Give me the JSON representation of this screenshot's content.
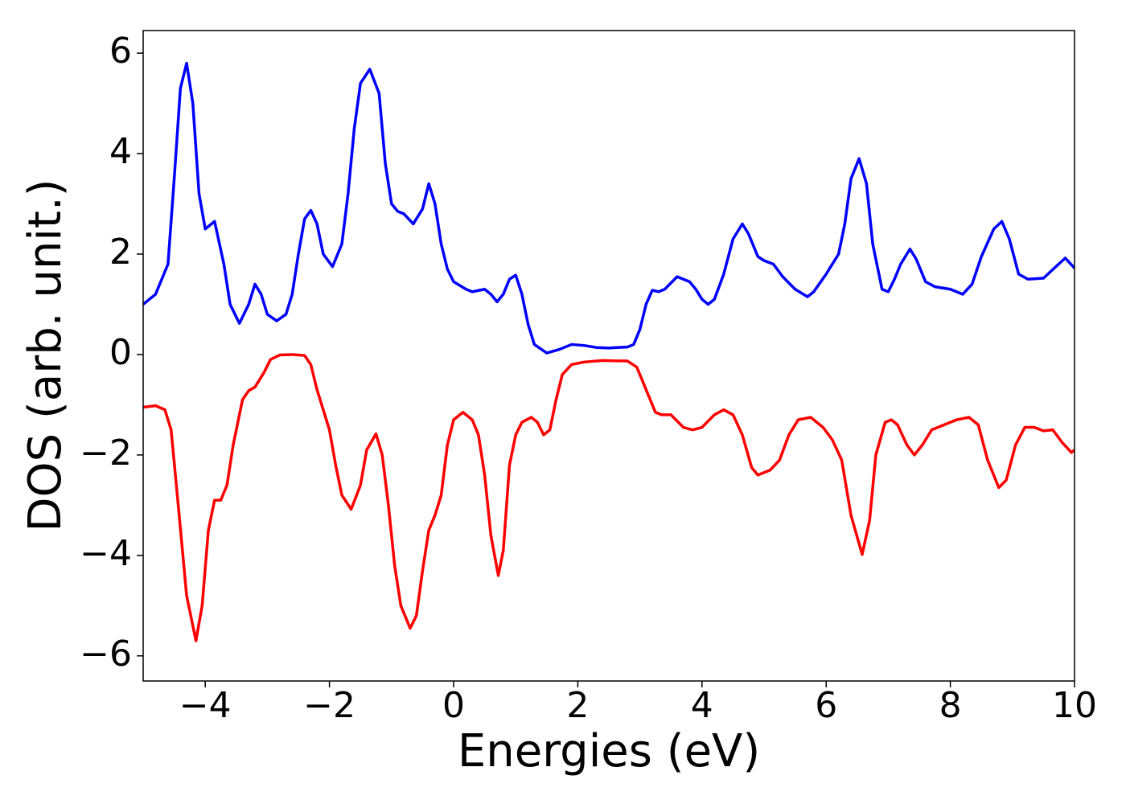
{
  "chart_data": {
    "type": "line",
    "xlabel": "Energies (eV)",
    "ylabel": "DOS (arb. unit.)",
    "xlim": [
      -5,
      10
    ],
    "ylim": [
      -6.5,
      6.45
    ],
    "xticks": [
      {
        "value": -4,
        "label": "−4"
      },
      {
        "value": -2,
        "label": "−2"
      },
      0,
      2,
      4,
      6,
      8,
      10
    ],
    "yticks": [
      {
        "value": -6,
        "label": "−6"
      },
      {
        "value": -4,
        "label": "−4"
      },
      {
        "value": -2,
        "label": "−2"
      },
      0,
      2,
      4,
      6
    ],
    "series": [
      {
        "color": "#0000ff",
        "x": [
          -5,
          -4.8,
          -4.6,
          -4.5,
          -4.4,
          -4.3,
          -4.2,
          -4.1,
          -4.0,
          -3.85,
          -3.7,
          -3.6,
          -3.45,
          -3.3,
          -3.2,
          -3.1,
          -3.0,
          -2.85,
          -2.7,
          -2.6,
          -2.5,
          -2.4,
          -2.3,
          -2.2,
          -2.1,
          -1.95,
          -1.8,
          -1.7,
          -1.6,
          -1.5,
          -1.35,
          -1.2,
          -1.1,
          -1.0,
          -0.9,
          -0.8,
          -0.65,
          -0.5,
          -0.4,
          -0.3,
          -0.2,
          -0.1,
          0,
          0.2,
          0.3,
          0.5,
          0.6,
          0.7,
          0.8,
          0.9,
          1.0,
          1.1,
          1.2,
          1.3,
          1.5,
          1.7,
          1.9,
          2.1,
          2.3,
          2.5,
          2.8,
          2.9,
          3.0,
          3.1,
          3.2,
          3.3,
          3.4,
          3.6,
          3.8,
          3.9,
          4.0,
          4.1,
          4.2,
          4.35,
          4.5,
          4.65,
          4.75,
          4.9,
          5.0,
          5.15,
          5.3,
          5.5,
          5.7,
          5.8,
          6.0,
          6.2,
          6.3,
          6.4,
          6.53,
          6.65,
          6.75,
          6.9,
          7.0,
          7.1,
          7.2,
          7.35,
          7.45,
          7.6,
          7.75,
          8.0,
          8.2,
          8.35,
          8.5,
          8.7,
          8.83,
          8.95,
          9.1,
          9.25,
          9.5,
          9.7,
          9.85,
          10.0
        ],
        "values": [
          1.0,
          1.2,
          1.8,
          3.5,
          5.3,
          5.8,
          5.0,
          3.2,
          2.5,
          2.65,
          1.8,
          1.0,
          0.62,
          1.0,
          1.4,
          1.2,
          0.8,
          0.67,
          0.8,
          1.2,
          2.0,
          2.7,
          2.87,
          2.6,
          2.0,
          1.75,
          2.2,
          3.2,
          4.5,
          5.4,
          5.68,
          5.2,
          3.8,
          3.0,
          2.85,
          2.8,
          2.6,
          2.9,
          3.4,
          3.0,
          2.2,
          1.7,
          1.45,
          1.3,
          1.25,
          1.3,
          1.2,
          1.05,
          1.2,
          1.5,
          1.58,
          1.2,
          0.6,
          0.2,
          0.03,
          0.1,
          0.2,
          0.18,
          0.14,
          0.13,
          0.15,
          0.2,
          0.5,
          1.0,
          1.28,
          1.25,
          1.3,
          1.55,
          1.45,
          1.3,
          1.1,
          1.0,
          1.1,
          1.6,
          2.3,
          2.6,
          2.4,
          1.95,
          1.87,
          1.8,
          1.55,
          1.3,
          1.15,
          1.25,
          1.6,
          2.0,
          2.6,
          3.5,
          3.9,
          3.4,
          2.2,
          1.3,
          1.25,
          1.5,
          1.8,
          2.1,
          1.9,
          1.45,
          1.35,
          1.3,
          1.2,
          1.4,
          1.95,
          2.5,
          2.65,
          2.3,
          1.6,
          1.5,
          1.52,
          1.75,
          1.92,
          1.72
        ]
      },
      {
        "color": "#ff0000",
        "x": [
          -5,
          -4.8,
          -4.65,
          -4.55,
          -4.45,
          -4.3,
          -4.15,
          -4.05,
          -3.95,
          -3.85,
          -3.75,
          -3.65,
          -3.55,
          -3.4,
          -3.3,
          -3.2,
          -3.05,
          -2.95,
          -2.8,
          -2.6,
          -2.4,
          -2.3,
          -2.2,
          -2.1,
          -2.0,
          -1.9,
          -1.8,
          -1.65,
          -1.5,
          -1.4,
          -1.25,
          -1.15,
          -1.05,
          -0.95,
          -0.85,
          -0.7,
          -0.6,
          -0.5,
          -0.4,
          -0.3,
          -0.2,
          -0.1,
          0.0,
          0.15,
          0.3,
          0.4,
          0.5,
          0.6,
          0.72,
          0.8,
          0.9,
          1.0,
          1.1,
          1.25,
          1.35,
          1.45,
          1.55,
          1.65,
          1.75,
          1.9,
          2.1,
          2.4,
          2.8,
          2.95,
          3.1,
          3.25,
          3.35,
          3.5,
          3.7,
          3.85,
          4.0,
          4.2,
          4.35,
          4.5,
          4.65,
          4.8,
          4.9,
          5.1,
          5.25,
          5.4,
          5.55,
          5.75,
          5.95,
          6.1,
          6.25,
          6.4,
          6.58,
          6.7,
          6.8,
          6.95,
          7.05,
          7.15,
          7.3,
          7.42,
          7.55,
          7.7,
          7.9,
          8.1,
          8.3,
          8.45,
          8.6,
          8.78,
          8.9,
          9.05,
          9.2,
          9.35,
          9.5,
          9.65,
          9.8,
          9.95,
          10.0
        ],
        "values": [
          -1.05,
          -1.02,
          -1.1,
          -1.5,
          -2.8,
          -4.8,
          -5.7,
          -5.0,
          -3.5,
          -2.9,
          -2.9,
          -2.6,
          -1.8,
          -0.9,
          -0.72,
          -0.65,
          -0.35,
          -0.1,
          -0.01,
          0,
          -0.02,
          -0.2,
          -0.7,
          -1.1,
          -1.5,
          -2.2,
          -2.8,
          -3.08,
          -2.6,
          -1.9,
          -1.58,
          -2.0,
          -3.0,
          -4.2,
          -5.0,
          -5.45,
          -5.2,
          -4.3,
          -3.5,
          -3.2,
          -2.8,
          -1.8,
          -1.3,
          -1.15,
          -1.3,
          -1.6,
          -2.4,
          -3.6,
          -4.4,
          -3.9,
          -2.2,
          -1.6,
          -1.35,
          -1.25,
          -1.35,
          -1.6,
          -1.5,
          -0.9,
          -0.4,
          -0.2,
          -0.15,
          -0.12,
          -0.13,
          -0.25,
          -0.7,
          -1.15,
          -1.2,
          -1.2,
          -1.45,
          -1.5,
          -1.45,
          -1.2,
          -1.1,
          -1.2,
          -1.6,
          -2.25,
          -2.4,
          -2.3,
          -2.1,
          -1.6,
          -1.3,
          -1.25,
          -1.45,
          -1.7,
          -2.1,
          -3.2,
          -3.98,
          -3.3,
          -2.0,
          -1.35,
          -1.3,
          -1.4,
          -1.8,
          -2.0,
          -1.8,
          -1.5,
          -1.4,
          -1.3,
          -1.25,
          -1.4,
          -2.1,
          -2.65,
          -2.5,
          -1.8,
          -1.45,
          -1.45,
          -1.52,
          -1.5,
          -1.75,
          -1.95,
          -1.9
        ]
      }
    ]
  }
}
